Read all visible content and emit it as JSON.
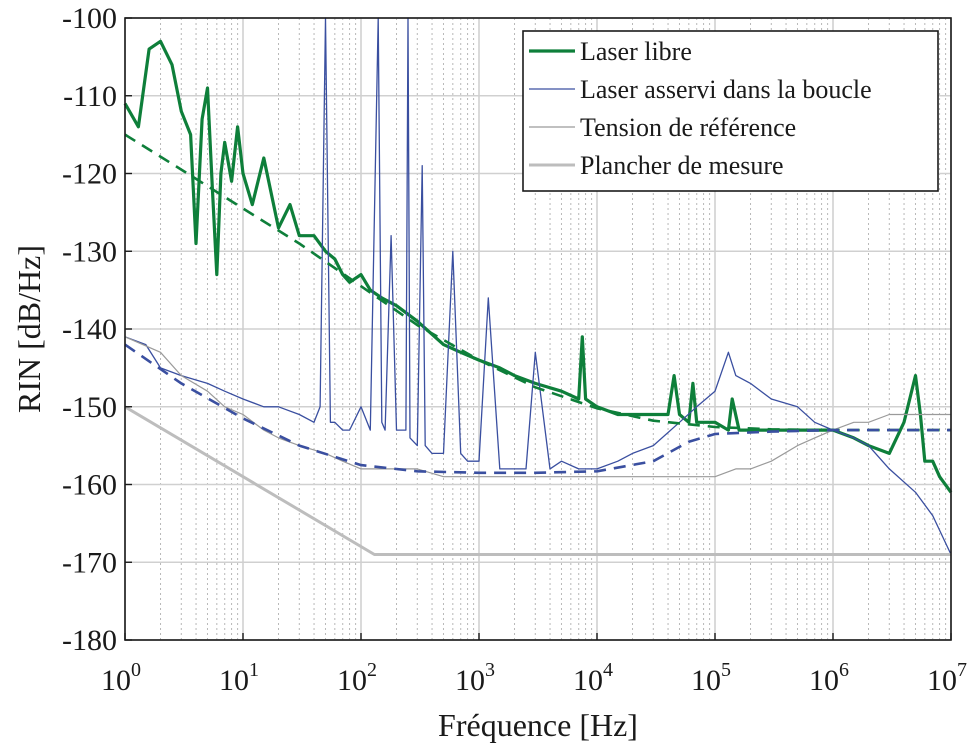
{
  "chart_data": {
    "type": "line",
    "title": "",
    "xlabel": "Fréquence [Hz]",
    "ylabel": "RIN [dB/Hz]",
    "x_scale": "log",
    "xlim": [
      1,
      10000000
    ],
    "ylim": [
      -180,
      -100
    ],
    "x_ticks": [
      {
        "value": 1,
        "base": "10",
        "exp": "0"
      },
      {
        "value": 10,
        "base": "10",
        "exp": "1"
      },
      {
        "value": 100,
        "base": "10",
        "exp": "2"
      },
      {
        "value": 1000,
        "base": "10",
        "exp": "3"
      },
      {
        "value": 10000,
        "base": "10",
        "exp": "4"
      },
      {
        "value": 100000,
        "base": "10",
        "exp": "5"
      },
      {
        "value": 1000000,
        "base": "10",
        "exp": "6"
      },
      {
        "value": 10000000,
        "base": "10",
        "exp": "7"
      }
    ],
    "y_ticks": [
      {
        "value": -100,
        "label": "-100"
      },
      {
        "value": -110,
        "label": "-110"
      },
      {
        "value": -120,
        "label": "-120"
      },
      {
        "value": -130,
        "label": "-130"
      },
      {
        "value": -140,
        "label": "-140"
      },
      {
        "value": -150,
        "label": "-150"
      },
      {
        "value": -160,
        "label": "-160"
      },
      {
        "value": -170,
        "label": "-170"
      },
      {
        "value": -180,
        "label": "-180"
      }
    ],
    "grid": true,
    "legend_position": "top-right",
    "colors": {
      "green": "#0e7f3a",
      "blue": "#3a4fa0",
      "gray": "#9a9a9a",
      "lightgray": "#bdbdbd",
      "grid_major": "#d0d0d0",
      "grid_minor": "#b8b8b8"
    },
    "series": [
      {
        "name": "Laser libre",
        "style": "solid",
        "color": "green",
        "width": 3.2,
        "x": [
          1,
          1.3,
          1.6,
          2.0,
          2.5,
          3.0,
          3.6,
          4.0,
          4.5,
          5,
          5.5,
          6,
          6.5,
          7,
          8,
          9,
          10,
          12,
          15,
          20,
          25,
          30,
          40,
          50,
          60,
          70,
          80,
          100,
          120,
          150,
          200,
          300,
          500,
          700,
          1000,
          1500,
          2000,
          3000,
          5000,
          7000,
          7500,
          8000,
          10000,
          15000,
          20000,
          30000,
          40000,
          45000,
          50000,
          60000,
          65000,
          70000,
          100000,
          130000,
          140000,
          160000,
          200000,
          300000,
          500000,
          700000,
          1000000,
          1500000,
          2000000,
          3000000,
          4000000,
          5000000,
          5500000,
          6000000,
          7000000,
          8000000,
          10000000
        ],
        "y": [
          -111,
          -114,
          -104,
          -103,
          -106,
          -112,
          -115,
          -129,
          -113,
          -109,
          -122,
          -133,
          -120,
          -116,
          -121,
          -114,
          -120,
          -124,
          -118,
          -127,
          -124,
          -128,
          -128,
          -130,
          -131,
          -133,
          -134,
          -133,
          -135,
          -136,
          -137,
          -139,
          -142,
          -143,
          -144,
          -145,
          -146,
          -147,
          -148,
          -149,
          -141,
          -149,
          -150,
          -151,
          -151,
          -151,
          -151,
          -146,
          -151,
          -152,
          -147,
          -152,
          -152,
          -153,
          -149,
          -153,
          -153,
          -153,
          -153,
          -153,
          -153,
          -154,
          -155,
          -156,
          -152,
          -146,
          -151,
          -157,
          -157,
          -159,
          -161
        ]
      },
      {
        "name": "Laser asservi dans la boucle",
        "style": "solid",
        "color": "blue",
        "width": 1.3,
        "x": [
          1,
          1.5,
          2,
          3,
          5,
          7,
          10,
          15,
          20,
          30,
          40,
          45,
          50,
          55,
          60,
          70,
          80,
          100,
          120,
          140,
          150,
          160,
          180,
          200,
          240,
          250,
          260,
          300,
          330,
          350,
          400,
          500,
          600,
          700,
          800,
          1000,
          1200,
          1500,
          2000,
          2500,
          3000,
          4000,
          5000,
          7000,
          8000,
          10000,
          15000,
          20000,
          30000,
          50000,
          70000,
          100000,
          130000,
          150000,
          200000,
          300000,
          500000,
          700000,
          1000000,
          1500000,
          2000000,
          3000000,
          5000000,
          7000000,
          10000000
        ],
        "y": [
          -141,
          -142,
          -145,
          -146,
          -147,
          -148,
          -149,
          -150,
          -150,
          -151,
          -152,
          -150,
          -100,
          -152,
          -152,
          -153,
          -153,
          -150,
          -153,
          -100,
          -152,
          -153,
          -128,
          -153,
          -153,
          -100,
          -154,
          -155,
          -119,
          -155,
          -156,
          -156,
          -130,
          -156,
          -157,
          -157,
          -136,
          -158,
          -158,
          -158,
          -143,
          -158,
          -157,
          -158,
          -158,
          -158,
          -157,
          -156,
          -155,
          -152,
          -150,
          -148,
          -143,
          -146,
          -147,
          -149,
          -150,
          -152,
          -153,
          -154,
          -155,
          -158,
          -161,
          -164,
          -169
        ]
      },
      {
        "name": "Tension de référence",
        "style": "solid",
        "color": "gray",
        "width": 1.2,
        "x": [
          1,
          2,
          3,
          5,
          7,
          10,
          15,
          20,
          30,
          50,
          70,
          100,
          200,
          300,
          500,
          1000,
          2000,
          3000,
          5000,
          10000,
          20000,
          30000,
          50000,
          70000,
          100000,
          150000,
          200000,
          300000,
          500000,
          700000,
          1000000,
          1500000,
          2000000,
          3000000,
          5000000,
          7000000,
          10000000
        ],
        "y": [
          -141,
          -143,
          -146,
          -148,
          -150,
          -151,
          -153,
          -154,
          -155,
          -156,
          -157,
          -158,
          -158,
          -158,
          -159,
          -159,
          -159,
          -159,
          -159,
          -159,
          -159,
          -159,
          -159,
          -159,
          -159,
          -158,
          -158,
          -157,
          -155,
          -154,
          -153,
          -152,
          -152,
          -151,
          -151,
          -151,
          -151
        ]
      },
      {
        "name": "Plancher de mesure",
        "style": "solid",
        "color": "lightgray",
        "width": 3,
        "x": [
          1,
          130,
          10000000
        ],
        "y": [
          -150,
          -169,
          -169
        ]
      },
      {
        "name": "",
        "style": "dashed",
        "color": "green",
        "width": 2.6,
        "x": [
          1,
          3,
          10,
          30,
          100,
          300,
          1000,
          3000,
          10000,
          30000,
          100000,
          300000,
          1000000,
          3000000,
          10000000
        ],
        "y": [
          -115,
          -119.5,
          -124.5,
          -129,
          -134.5,
          -139.5,
          -144,
          -147.5,
          -150.2,
          -151.8,
          -152.6,
          -152.9,
          -153,
          -153,
          -153
        ]
      },
      {
        "name": "",
        "style": "dashed",
        "color": "blue",
        "width": 2.6,
        "x": [
          1,
          3,
          10,
          30,
          100,
          300,
          1000,
          3000,
          10000,
          30000,
          60000,
          100000,
          300000,
          1000000,
          3000000,
          10000000
        ],
        "y": [
          -142,
          -147,
          -151.5,
          -155,
          -157.5,
          -158.3,
          -158.5,
          -158.5,
          -158.3,
          -157,
          -154.5,
          -153.5,
          -153.2,
          -153,
          -153,
          -153
        ]
      }
    ],
    "legend": [
      {
        "label": "Laser libre",
        "color": "green",
        "width": 3.2
      },
      {
        "label": "Laser asservi dans la boucle",
        "color": "blue",
        "width": 1.3
      },
      {
        "label": "Tension de référence",
        "color": "gray",
        "width": 1.2
      },
      {
        "label": "Plancher de mesure",
        "color": "lightgray",
        "width": 3
      }
    ]
  }
}
